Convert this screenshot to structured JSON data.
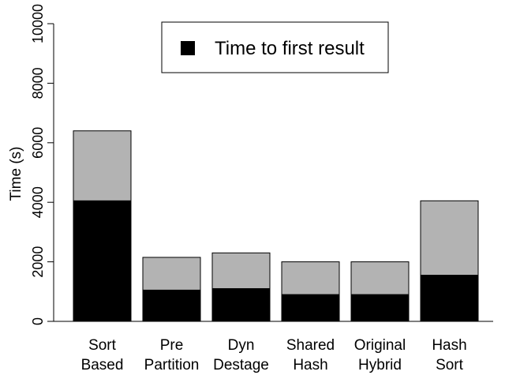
{
  "chart_data": {
    "type": "stacked-bar",
    "ylabel": "Time (s)",
    "categories": [
      [
        "Sort",
        "Based"
      ],
      [
        "Pre",
        "Partition"
      ],
      [
        "Dyn",
        "Destage"
      ],
      [
        "Shared",
        "Hash"
      ],
      [
        "Original",
        "Hybrid"
      ],
      [
        "Hash",
        "Sort"
      ]
    ],
    "series": [
      {
        "name": "Time to first result",
        "color": "#000000",
        "values": [
          4050,
          1050,
          1100,
          900,
          900,
          1550
        ]
      },
      {
        "color": "#b3b3b3",
        "values": [
          2350,
          1100,
          1200,
          1100,
          1100,
          2500
        ]
      }
    ],
    "ylim": [
      0,
      10000
    ],
    "yticks": [
      0,
      2000,
      4000,
      6000,
      8000,
      10000
    ],
    "grid": false,
    "legend": "top"
  }
}
